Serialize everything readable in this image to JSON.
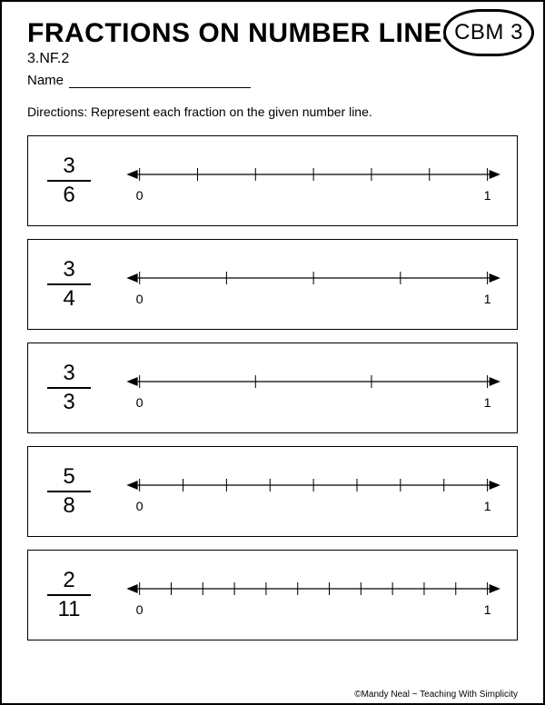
{
  "header": {
    "title": "FRACTIONS ON NUMBER LINES",
    "badge": "CBM 3",
    "standard": "3.NF.2",
    "name_label": "Name"
  },
  "directions": "Directions:  Represent each fraction on the given number line.",
  "number_line": {
    "start_label": "0",
    "end_label": "1",
    "line_color": "#000000",
    "tick_height": 14
  },
  "problems": [
    {
      "numerator": "3",
      "denominator": "6",
      "divisions": 6
    },
    {
      "numerator": "3",
      "denominator": "4",
      "divisions": 4
    },
    {
      "numerator": "3",
      "denominator": "3",
      "divisions": 3
    },
    {
      "numerator": "5",
      "denominator": "8",
      "divisions": 8
    },
    {
      "numerator": "2",
      "denominator": "11",
      "divisions": 11
    }
  ],
  "footer": "©Mandy Neal ~ Teaching With Simplicity"
}
